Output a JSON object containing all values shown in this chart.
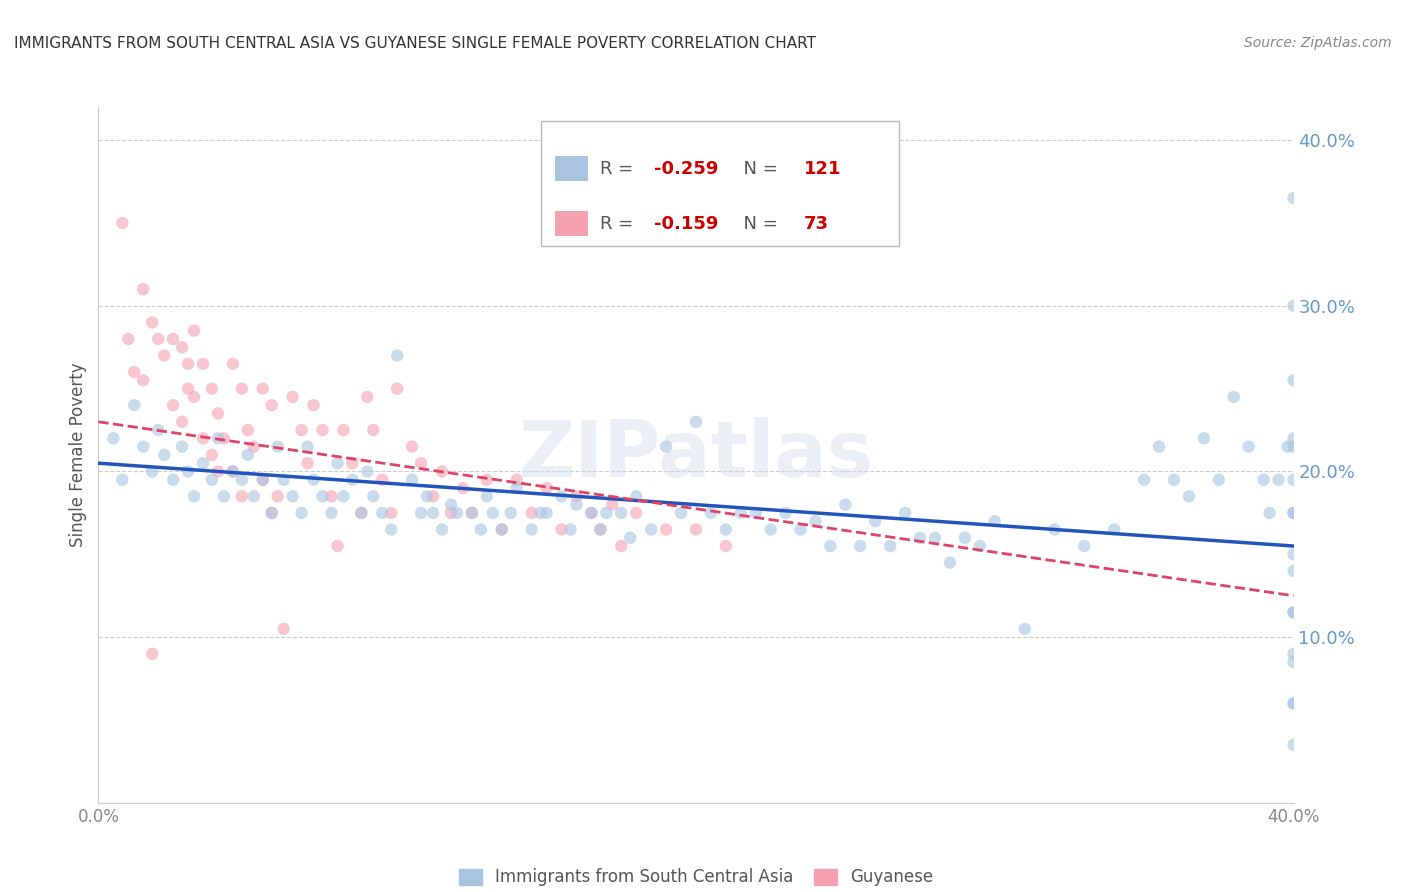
{
  "title": "IMMIGRANTS FROM SOUTH CENTRAL ASIA VS GUYANESE SINGLE FEMALE POVERTY CORRELATION CHART",
  "source": "Source: ZipAtlas.com",
  "ylabel": "Single Female Poverty",
  "watermark": "ZIPatlas",
  "legend_blue_r": "-0.259",
  "legend_blue_n": "121",
  "legend_pink_r": "-0.159",
  "legend_pink_n": "73",
  "legend_label_blue": "Immigrants from South Central Asia",
  "legend_label_pink": "Guyanese",
  "xlim": [
    0.0,
    0.4
  ],
  "ylim": [
    0.0,
    0.42
  ],
  "yticks": [
    0.1,
    0.2,
    0.3,
    0.4
  ],
  "ytick_labels": [
    "10.0%",
    "20.0%",
    "30.0%",
    "40.0%"
  ],
  "grid_color": "#cccccc",
  "blue_color": "#a8c4e0",
  "pink_color": "#f4a0b0",
  "blue_line_color": "#2255bb",
  "pink_line_color": "#dd4466",
  "title_color": "#333333",
  "axis_label_color": "#6699cc",
  "source_color": "#888888",
  "blue_x": [
    0.005,
    0.008,
    0.012,
    0.015,
    0.018,
    0.02,
    0.022,
    0.025,
    0.028,
    0.03,
    0.032,
    0.035,
    0.038,
    0.04,
    0.042,
    0.045,
    0.048,
    0.05,
    0.052,
    0.055,
    0.058,
    0.06,
    0.062,
    0.065,
    0.068,
    0.07,
    0.072,
    0.075,
    0.078,
    0.08,
    0.082,
    0.085,
    0.088,
    0.09,
    0.092,
    0.095,
    0.098,
    0.1,
    0.105,
    0.108,
    0.11,
    0.112,
    0.115,
    0.118,
    0.12,
    0.125,
    0.128,
    0.13,
    0.132,
    0.135,
    0.138,
    0.14,
    0.145,
    0.148,
    0.15,
    0.155,
    0.158,
    0.16,
    0.165,
    0.168,
    0.17,
    0.175,
    0.178,
    0.18,
    0.185,
    0.19,
    0.195,
    0.2,
    0.205,
    0.21,
    0.215,
    0.22,
    0.225,
    0.23,
    0.235,
    0.24,
    0.245,
    0.25,
    0.255,
    0.26,
    0.265,
    0.27,
    0.275,
    0.28,
    0.285,
    0.29,
    0.295,
    0.3,
    0.31,
    0.32,
    0.33,
    0.34,
    0.35,
    0.355,
    0.36,
    0.365,
    0.37,
    0.375,
    0.38,
    0.385,
    0.39,
    0.392,
    0.395,
    0.398,
    0.4,
    0.4,
    0.4,
    0.4,
    0.4,
    0.4,
    0.4,
    0.4,
    0.4,
    0.4,
    0.4,
    0.4,
    0.4,
    0.4,
    0.4,
    0.4,
    0.4
  ],
  "blue_y": [
    0.22,
    0.195,
    0.24,
    0.215,
    0.2,
    0.225,
    0.21,
    0.195,
    0.215,
    0.2,
    0.185,
    0.205,
    0.195,
    0.22,
    0.185,
    0.2,
    0.195,
    0.21,
    0.185,
    0.195,
    0.175,
    0.215,
    0.195,
    0.185,
    0.175,
    0.215,
    0.195,
    0.185,
    0.175,
    0.205,
    0.185,
    0.195,
    0.175,
    0.2,
    0.185,
    0.175,
    0.165,
    0.27,
    0.195,
    0.175,
    0.185,
    0.175,
    0.165,
    0.18,
    0.175,
    0.175,
    0.165,
    0.185,
    0.175,
    0.165,
    0.175,
    0.19,
    0.165,
    0.175,
    0.175,
    0.185,
    0.165,
    0.18,
    0.175,
    0.165,
    0.175,
    0.175,
    0.16,
    0.185,
    0.165,
    0.215,
    0.175,
    0.23,
    0.175,
    0.165,
    0.175,
    0.175,
    0.165,
    0.175,
    0.165,
    0.17,
    0.155,
    0.18,
    0.155,
    0.17,
    0.155,
    0.175,
    0.16,
    0.16,
    0.145,
    0.16,
    0.155,
    0.17,
    0.105,
    0.165,
    0.155,
    0.165,
    0.195,
    0.215,
    0.195,
    0.185,
    0.22,
    0.195,
    0.245,
    0.215,
    0.195,
    0.175,
    0.195,
    0.215,
    0.365,
    0.3,
    0.255,
    0.22,
    0.175,
    0.14,
    0.115,
    0.09,
    0.06,
    0.215,
    0.195,
    0.175,
    0.15,
    0.115,
    0.085,
    0.06,
    0.035
  ],
  "pink_x": [
    0.008,
    0.01,
    0.012,
    0.015,
    0.018,
    0.015,
    0.018,
    0.02,
    0.022,
    0.025,
    0.028,
    0.03,
    0.032,
    0.025,
    0.028,
    0.03,
    0.032,
    0.035,
    0.038,
    0.04,
    0.035,
    0.038,
    0.04,
    0.042,
    0.045,
    0.048,
    0.045,
    0.048,
    0.05,
    0.052,
    0.055,
    0.058,
    0.055,
    0.058,
    0.06,
    0.062,
    0.065,
    0.068,
    0.07,
    0.072,
    0.075,
    0.078,
    0.08,
    0.082,
    0.085,
    0.088,
    0.09,
    0.092,
    0.095,
    0.098,
    0.1,
    0.105,
    0.108,
    0.112,
    0.115,
    0.118,
    0.122,
    0.125,
    0.13,
    0.135,
    0.14,
    0.145,
    0.15,
    0.155,
    0.16,
    0.165,
    0.168,
    0.172,
    0.175,
    0.18,
    0.19,
    0.2,
    0.21
  ],
  "pink_y": [
    0.35,
    0.28,
    0.26,
    0.255,
    0.09,
    0.31,
    0.29,
    0.28,
    0.27,
    0.24,
    0.23,
    0.25,
    0.285,
    0.28,
    0.275,
    0.265,
    0.245,
    0.22,
    0.21,
    0.2,
    0.265,
    0.25,
    0.235,
    0.22,
    0.2,
    0.185,
    0.265,
    0.25,
    0.225,
    0.215,
    0.195,
    0.175,
    0.25,
    0.24,
    0.185,
    0.105,
    0.245,
    0.225,
    0.205,
    0.24,
    0.225,
    0.185,
    0.155,
    0.225,
    0.205,
    0.175,
    0.245,
    0.225,
    0.195,
    0.175,
    0.25,
    0.215,
    0.205,
    0.185,
    0.2,
    0.175,
    0.19,
    0.175,
    0.195,
    0.165,
    0.195,
    0.175,
    0.19,
    0.165,
    0.185,
    0.175,
    0.165,
    0.18,
    0.155,
    0.175,
    0.165,
    0.165,
    0.155
  ],
  "marker_size": 80,
  "marker_alpha": 0.6,
  "blue_line_start_y": 0.205,
  "blue_line_end_y": 0.155,
  "pink_line_start_y": 0.23,
  "pink_line_end_y": 0.125
}
